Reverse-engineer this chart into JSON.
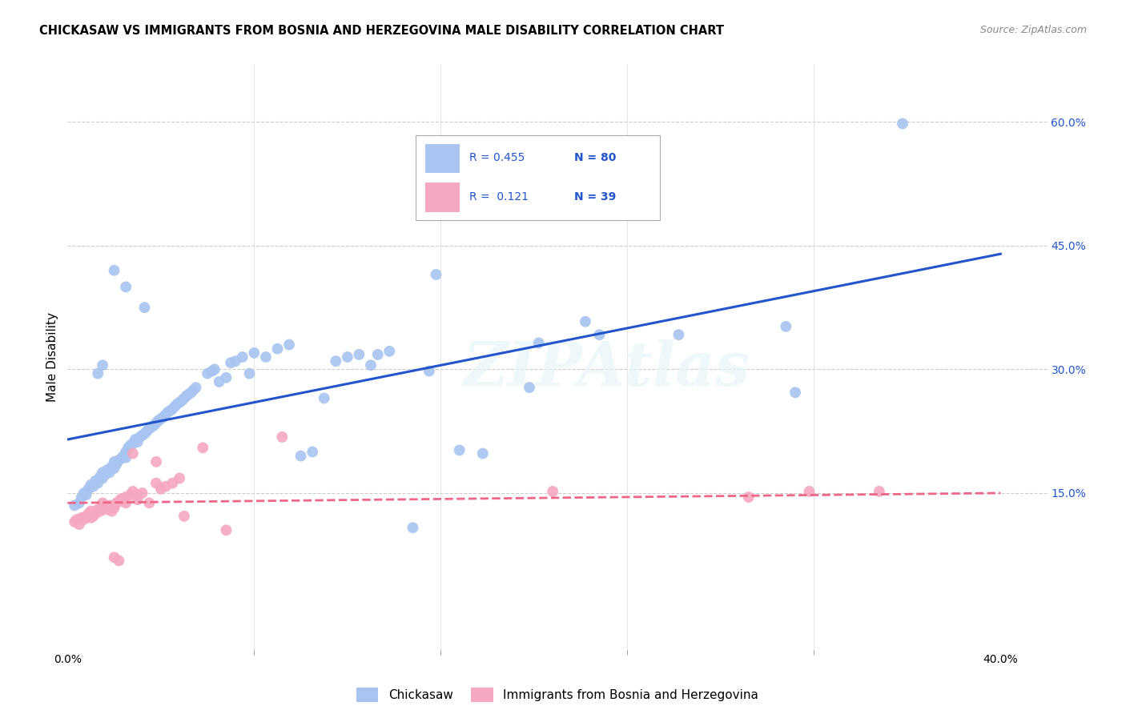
{
  "title": "CHICKASAW VS IMMIGRANTS FROM BOSNIA AND HERZEGOVINA MALE DISABILITY CORRELATION CHART",
  "source": "Source: ZipAtlas.com",
  "ylabel": "Male Disability",
  "xlim": [
    0.0,
    0.42
  ],
  "ylim": [
    -0.04,
    0.67
  ],
  "yticks": [
    0.15,
    0.3,
    0.45,
    0.6
  ],
  "ytick_labels": [
    "15.0%",
    "30.0%",
    "45.0%",
    "60.0%"
  ],
  "xtick_positions": [
    0.0,
    0.4
  ],
  "xtick_labels": [
    "0.0%",
    "40.0%"
  ],
  "xtick_minor": [
    0.08,
    0.16,
    0.24,
    0.32
  ],
  "watermark": "ZIPAtlas",
  "blue_color": "#A8C4F0",
  "pink_color": "#F5A8C0",
  "blue_line_color": "#2255CC",
  "pink_line_color": "#EE6688",
  "blue_scatter": [
    [
      0.003,
      0.135
    ],
    [
      0.005,
      0.138
    ],
    [
      0.006,
      0.145
    ],
    [
      0.007,
      0.15
    ],
    [
      0.008,
      0.148
    ],
    [
      0.009,
      0.155
    ],
    [
      0.01,
      0.16
    ],
    [
      0.011,
      0.158
    ],
    [
      0.012,
      0.165
    ],
    [
      0.013,
      0.162
    ],
    [
      0.014,
      0.17
    ],
    [
      0.015,
      0.168
    ],
    [
      0.015,
      0.175
    ],
    [
      0.016,
      0.172
    ],
    [
      0.017,
      0.178
    ],
    [
      0.018,
      0.175
    ],
    [
      0.019,
      0.182
    ],
    [
      0.02,
      0.18
    ],
    [
      0.02,
      0.188
    ],
    [
      0.021,
      0.185
    ],
    [
      0.022,
      0.19
    ],
    [
      0.023,
      0.192
    ],
    [
      0.024,
      0.195
    ],
    [
      0.025,
      0.193
    ],
    [
      0.025,
      0.2
    ],
    [
      0.026,
      0.205
    ],
    [
      0.027,
      0.208
    ],
    [
      0.028,
      0.21
    ],
    [
      0.029,
      0.215
    ],
    [
      0.03,
      0.212
    ],
    [
      0.031,
      0.218
    ],
    [
      0.032,
      0.22
    ],
    [
      0.033,
      0.222
    ],
    [
      0.034,
      0.225
    ],
    [
      0.035,
      0.228
    ],
    [
      0.036,
      0.23
    ],
    [
      0.037,
      0.232
    ],
    [
      0.038,
      0.235
    ],
    [
      0.039,
      0.238
    ],
    [
      0.04,
      0.24
    ],
    [
      0.041,
      0.242
    ],
    [
      0.042,
      0.245
    ],
    [
      0.043,
      0.248
    ],
    [
      0.044,
      0.25
    ],
    [
      0.045,
      0.252
    ],
    [
      0.046,
      0.255
    ],
    [
      0.047,
      0.258
    ],
    [
      0.048,
      0.26
    ],
    [
      0.049,
      0.262
    ],
    [
      0.05,
      0.265
    ],
    [
      0.051,
      0.268
    ],
    [
      0.052,
      0.27
    ],
    [
      0.053,
      0.272
    ],
    [
      0.054,
      0.275
    ],
    [
      0.055,
      0.278
    ],
    [
      0.013,
      0.295
    ],
    [
      0.015,
      0.305
    ],
    [
      0.02,
      0.42
    ],
    [
      0.025,
      0.4
    ],
    [
      0.033,
      0.375
    ],
    [
      0.06,
      0.295
    ],
    [
      0.062,
      0.298
    ],
    [
      0.063,
      0.3
    ],
    [
      0.065,
      0.285
    ],
    [
      0.068,
      0.29
    ],
    [
      0.07,
      0.308
    ],
    [
      0.072,
      0.31
    ],
    [
      0.075,
      0.315
    ],
    [
      0.078,
      0.295
    ],
    [
      0.08,
      0.32
    ],
    [
      0.085,
      0.315
    ],
    [
      0.09,
      0.325
    ],
    [
      0.095,
      0.33
    ],
    [
      0.1,
      0.195
    ],
    [
      0.105,
      0.2
    ],
    [
      0.11,
      0.265
    ],
    [
      0.115,
      0.31
    ],
    [
      0.12,
      0.315
    ],
    [
      0.125,
      0.318
    ],
    [
      0.13,
      0.305
    ],
    [
      0.133,
      0.318
    ],
    [
      0.138,
      0.322
    ],
    [
      0.148,
      0.108
    ],
    [
      0.155,
      0.298
    ],
    [
      0.158,
      0.415
    ],
    [
      0.168,
      0.202
    ],
    [
      0.178,
      0.198
    ],
    [
      0.198,
      0.278
    ],
    [
      0.202,
      0.332
    ],
    [
      0.222,
      0.358
    ],
    [
      0.228,
      0.342
    ],
    [
      0.262,
      0.342
    ],
    [
      0.308,
      0.352
    ],
    [
      0.312,
      0.272
    ],
    [
      0.358,
      0.598
    ]
  ],
  "pink_scatter": [
    [
      0.003,
      0.115
    ],
    [
      0.004,
      0.118
    ],
    [
      0.005,
      0.112
    ],
    [
      0.006,
      0.12
    ],
    [
      0.007,
      0.118
    ],
    [
      0.008,
      0.122
    ],
    [
      0.009,
      0.125
    ],
    [
      0.01,
      0.12
    ],
    [
      0.01,
      0.128
    ],
    [
      0.011,
      0.122
    ],
    [
      0.012,
      0.125
    ],
    [
      0.013,
      0.13
    ],
    [
      0.014,
      0.128
    ],
    [
      0.015,
      0.132
    ],
    [
      0.015,
      0.138
    ],
    [
      0.016,
      0.135
    ],
    [
      0.017,
      0.13
    ],
    [
      0.018,
      0.135
    ],
    [
      0.019,
      0.128
    ],
    [
      0.02,
      0.132
    ],
    [
      0.021,
      0.138
    ],
    [
      0.022,
      0.14
    ],
    [
      0.023,
      0.143
    ],
    [
      0.024,
      0.142
    ],
    [
      0.025,
      0.138
    ],
    [
      0.025,
      0.145
    ],
    [
      0.027,
      0.148
    ],
    [
      0.028,
      0.152
    ],
    [
      0.03,
      0.142
    ],
    [
      0.03,
      0.148
    ],
    [
      0.032,
      0.15
    ],
    [
      0.035,
      0.138
    ],
    [
      0.038,
      0.162
    ],
    [
      0.04,
      0.155
    ],
    [
      0.042,
      0.158
    ],
    [
      0.045,
      0.162
    ],
    [
      0.048,
      0.168
    ],
    [
      0.02,
      0.072
    ],
    [
      0.038,
      0.188
    ],
    [
      0.05,
      0.122
    ],
    [
      0.058,
      0.205
    ],
    [
      0.068,
      0.105
    ],
    [
      0.092,
      0.218
    ],
    [
      0.208,
      0.152
    ],
    [
      0.292,
      0.145
    ],
    [
      0.318,
      0.152
    ],
    [
      0.348,
      0.152
    ],
    [
      0.028,
      0.198
    ],
    [
      0.022,
      0.068
    ]
  ],
  "blue_line": {
    "x0": 0.0,
    "y0": 0.215,
    "x1": 0.4,
    "y1": 0.44
  },
  "pink_line": {
    "x0": 0.0,
    "y0": 0.138,
    "x1": 0.4,
    "y1": 0.15
  },
  "background_color": "#FFFFFF",
  "grid_color": "#CCCCCC",
  "grid_minor_color": "#E0E0E0"
}
